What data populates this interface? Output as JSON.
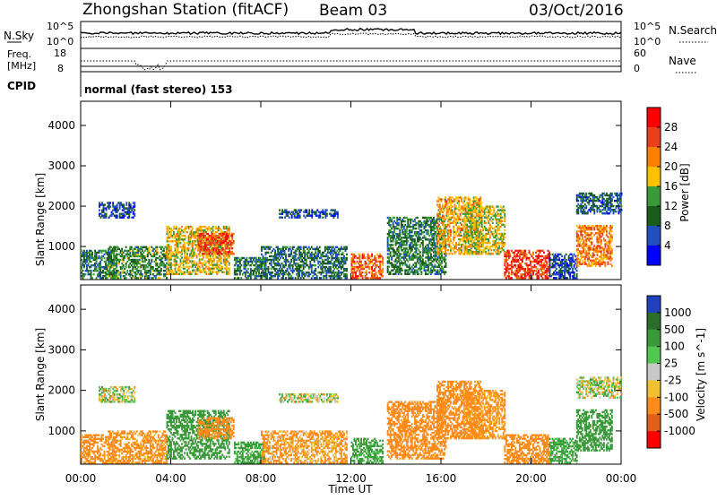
{
  "header": {
    "station": "Zhongshan Station (fitACF)",
    "beam": "Beam 03",
    "date": "03/Oct/2016"
  },
  "summary": {
    "left_label_1": "N.Sky",
    "left_ticks_1": [
      "10^5",
      "10^0"
    ],
    "right_ticks_1": [
      "10^5",
      "10^0"
    ],
    "right_label_1": "N.Search",
    "left_label_2a": "Freq.",
    "left_label_2b": "[MHz]",
    "left_ticks_2": [
      "18",
      "8"
    ],
    "right_ticks_2": [
      "60",
      "0"
    ],
    "right_label_2": "Nave",
    "left_label_3": "CPID",
    "cpid_text": "normal (fast stereo) 153"
  },
  "chart_data": [
    {
      "type": "heatmap",
      "title": "",
      "xlabel": "Time UT",
      "ylabel": "Slant Range [km]",
      "x_ticks": [
        "00:00",
        "04:00",
        "08:00",
        "12:00",
        "16:00",
        "20:00",
        "00:00"
      ],
      "xlim": [
        0,
        24
      ],
      "ylim": [
        180,
        4600
      ],
      "y_ticks": [
        "1000",
        "2000",
        "3000",
        "4000"
      ],
      "colorbar": {
        "label": "Power [dB]",
        "ticks": [
          "28",
          "24",
          "20",
          "16",
          "12",
          "8",
          "4"
        ],
        "colors": [
          "#ff0000",
          "#e8401a",
          "#ff8000",
          "#ffc000",
          "#3a9a3a",
          "#1a5c1a",
          "#2050c0",
          "#0000ff"
        ]
      },
      "patches": [
        {
          "t0": 0.0,
          "t1": 1.6,
          "r0": 200,
          "r1": 900,
          "v": 10
        },
        {
          "t0": 0.8,
          "t1": 2.4,
          "r0": 1700,
          "r1": 2100,
          "v": 6
        },
        {
          "t0": 1.2,
          "t1": 3.8,
          "r0": 200,
          "r1": 1000,
          "v": 12
        },
        {
          "t0": 3.8,
          "t1": 6.6,
          "r0": 300,
          "r1": 1500,
          "v": 18
        },
        {
          "t0": 5.2,
          "t1": 6.8,
          "r0": 800,
          "r1": 1300,
          "v": 26
        },
        {
          "t0": 6.8,
          "t1": 8.2,
          "r0": 200,
          "r1": 700,
          "v": 10
        },
        {
          "t0": 8.8,
          "t1": 11.4,
          "r0": 1700,
          "r1": 1900,
          "v": 6
        },
        {
          "t0": 8.0,
          "t1": 11.8,
          "r0": 200,
          "r1": 1000,
          "v": 9
        },
        {
          "t0": 12.0,
          "t1": 13.4,
          "r0": 200,
          "r1": 800,
          "v": 24
        },
        {
          "t0": 13.6,
          "t1": 16.2,
          "r0": 300,
          "r1": 1700,
          "v": 11
        },
        {
          "t0": 15.8,
          "t1": 17.8,
          "r0": 800,
          "r1": 2200,
          "v": 20
        },
        {
          "t0": 17.0,
          "t1": 18.8,
          "r0": 800,
          "r1": 2000,
          "v": 17
        },
        {
          "t0": 18.8,
          "t1": 20.8,
          "r0": 200,
          "r1": 900,
          "v": 27
        },
        {
          "t0": 20.8,
          "t1": 22.0,
          "r0": 200,
          "r1": 800,
          "v": 6
        },
        {
          "t0": 22.0,
          "t1": 24.0,
          "r0": 1800,
          "r1": 2300,
          "v": 8
        },
        {
          "t0": 22.0,
          "t1": 23.6,
          "r0": 500,
          "r1": 1500,
          "v": 22
        }
      ]
    },
    {
      "type": "heatmap",
      "title": "",
      "xlabel": "Time UT",
      "ylabel": "Slant Range [km]",
      "x_ticks": [
        "00:00",
        "04:00",
        "08:00",
        "12:00",
        "16:00",
        "20:00",
        "00:00"
      ],
      "xlim": [
        0,
        24
      ],
      "ylim": [
        180,
        4600
      ],
      "y_ticks": [
        "1000",
        "2000",
        "3000",
        "4000"
      ],
      "colorbar": {
        "label": "Velocity [m s^-1]",
        "ticks": [
          "1000",
          "500",
          "100",
          "25",
          "-25",
          "-100",
          "-500",
          "-1000"
        ],
        "colors": [
          "#2040c0",
          "#2a6e2a",
          "#3a9a3a",
          "#50c850",
          "#c8c8c8",
          "#f0c030",
          "#ff8c1a",
          "#e06018",
          "#ff0000"
        ]
      },
      "patches": [
        {
          "t0": 0.0,
          "t1": 1.6,
          "r0": 200,
          "r1": 900,
          "v": -300
        },
        {
          "t0": 0.8,
          "t1": 2.4,
          "r0": 1700,
          "r1": 2100,
          "v": 0
        },
        {
          "t0": 1.2,
          "t1": 3.8,
          "r0": 200,
          "r1": 1000,
          "v": -200
        },
        {
          "t0": 3.8,
          "t1": 6.6,
          "r0": 300,
          "r1": 1500,
          "v": 300
        },
        {
          "t0": 5.2,
          "t1": 6.8,
          "r0": 800,
          "r1": 1300,
          "v": -250
        },
        {
          "t0": 6.8,
          "t1": 8.2,
          "r0": 200,
          "r1": 700,
          "v": 150
        },
        {
          "t0": 8.8,
          "t1": 11.4,
          "r0": 1700,
          "r1": 1900,
          "v": 0
        },
        {
          "t0": 8.0,
          "t1": 11.8,
          "r0": 200,
          "r1": 1000,
          "v": -150
        },
        {
          "t0": 12.0,
          "t1": 13.4,
          "r0": 200,
          "r1": 800,
          "v": 200
        },
        {
          "t0": 13.6,
          "t1": 16.2,
          "r0": 300,
          "r1": 1700,
          "v": -300
        },
        {
          "t0": 15.8,
          "t1": 17.8,
          "r0": 800,
          "r1": 2200,
          "v": -250
        },
        {
          "t0": 17.0,
          "t1": 18.8,
          "r0": 800,
          "r1": 2000,
          "v": -200
        },
        {
          "t0": 18.8,
          "t1": 20.8,
          "r0": 200,
          "r1": 900,
          "v": -350
        },
        {
          "t0": 20.8,
          "t1": 22.0,
          "r0": 200,
          "r1": 800,
          "v": 150
        },
        {
          "t0": 22.0,
          "t1": 24.0,
          "r0": 1800,
          "r1": 2300,
          "v": 0
        },
        {
          "t0": 22.0,
          "t1": 23.6,
          "r0": 500,
          "r1": 1500,
          "v": 250
        }
      ]
    }
  ]
}
